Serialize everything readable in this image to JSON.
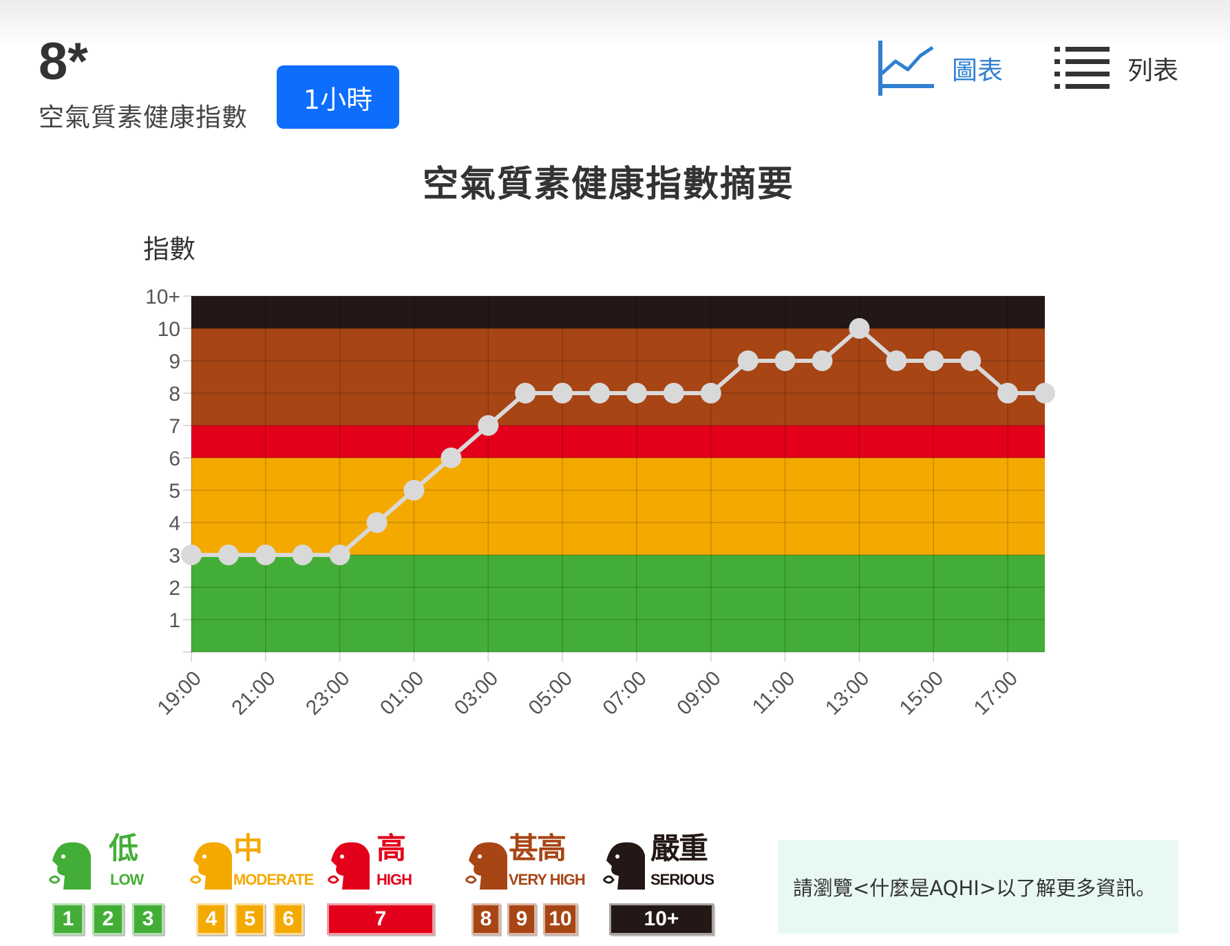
{
  "header": {
    "aqhi_value": "8*",
    "aqhi_label": "空氣質素健康指數",
    "period_button": "1小時",
    "view_chart_label": "圖表",
    "view_list_label": "列表"
  },
  "chart_data": {
    "type": "line",
    "title": "空氣質素健康指數摘要",
    "ylabel": "指數",
    "xlabel": "",
    "ylim": [
      0,
      11
    ],
    "y_ticks": [
      "1",
      "2",
      "3",
      "4",
      "5",
      "6",
      "7",
      "8",
      "9",
      "10",
      "10+"
    ],
    "x_tick_labels": [
      "19:00",
      "21:00",
      "23:00",
      "01:00",
      "03:00",
      "05:00",
      "07:00",
      "09:00",
      "11:00",
      "13:00",
      "15:00",
      "17:00"
    ],
    "x": [
      "19:00",
      "20:00",
      "21:00",
      "22:00",
      "23:00",
      "00:00",
      "01:00",
      "02:00",
      "03:00",
      "04:00",
      "05:00",
      "06:00",
      "07:00",
      "08:00",
      "09:00",
      "10:00",
      "11:00",
      "12:00",
      "13:00",
      "14:00",
      "15:00",
      "16:00",
      "17:00",
      "18:00"
    ],
    "series": [
      {
        "values": [
          3,
          3,
          3,
          3,
          3,
          4,
          5,
          6,
          7,
          8,
          8,
          8,
          8,
          8,
          8,
          9,
          9,
          9,
          10,
          9,
          9,
          9,
          8,
          8
        ]
      }
    ],
    "bands": [
      {
        "from": 0,
        "to": 3,
        "color": "#43ae37"
      },
      {
        "from": 3,
        "to": 6,
        "color": "#f4a901"
      },
      {
        "from": 6,
        "to": 7,
        "color": "#e3001a"
      },
      {
        "from": 7,
        "to": 10,
        "color": "#a84515"
      },
      {
        "from": 10,
        "to": 11,
        "color": "#231815"
      }
    ],
    "grid": true,
    "line_color": "#d9d9d9",
    "legend": "none"
  },
  "legend": [
    {
      "zh": "低",
      "en": "LOW",
      "color": "#43ae37",
      "boxes": [
        "1",
        "2",
        "3"
      ]
    },
    {
      "zh": "中",
      "en": "MODERATE",
      "color": "#f4a901",
      "boxes": [
        "4",
        "5",
        "6"
      ]
    },
    {
      "zh": "高",
      "en": "HIGH",
      "color": "#e3001a",
      "boxes": [
        "7"
      ]
    },
    {
      "zh": "甚高",
      "en": "VERY HIGH",
      "color": "#a84515",
      "boxes": [
        "8",
        "9",
        "10"
      ]
    },
    {
      "zh": "嚴重",
      "en": "SERIOUS",
      "color": "#231815",
      "boxes": [
        "10+"
      ]
    }
  ],
  "info": {
    "text": "請瀏覽<什麼是AQHI>以了解更多資訊。"
  }
}
